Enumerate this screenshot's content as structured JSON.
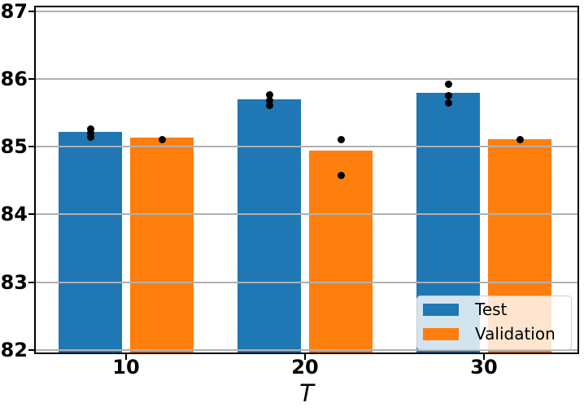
{
  "chart_data": {
    "type": "bar",
    "title": "",
    "xlabel": "T",
    "ylabel": "",
    "categories": [
      "10",
      "20",
      "30"
    ],
    "series": [
      {
        "name": "Test",
        "color": "#1f77b4",
        "values": [
          85.22,
          85.7,
          85.79
        ],
        "points": [
          [
            85.26,
            85.2,
            85.14
          ],
          [
            85.76,
            85.68,
            85.61
          ],
          [
            85.92,
            85.75,
            85.64
          ]
        ]
      },
      {
        "name": "Validation",
        "color": "#ff7f0e",
        "values": [
          85.13,
          84.94,
          85.11
        ],
        "points": [
          [
            85.11
          ],
          [
            85.1,
            84.58
          ],
          [
            85.11
          ]
        ]
      }
    ],
    "yticks": [
      82,
      83,
      84,
      85,
      86,
      87
    ],
    "ylim": [
      81.94,
      87.08
    ],
    "grid": true,
    "grid_color": "#b0b0b0",
    "point_color": "#000000",
    "legend_position": "lower right",
    "legend_labels": [
      "Test",
      "Validation"
    ]
  }
}
